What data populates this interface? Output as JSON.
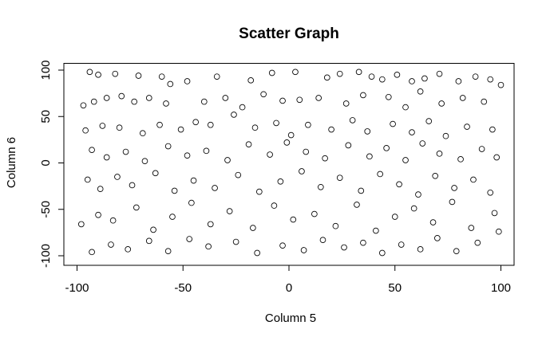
{
  "chart_data": {
    "type": "scatter",
    "title": "Scatter Graph",
    "xlabel": "Column 5",
    "ylabel": "Column 6",
    "xlim": [
      -100,
      100
    ],
    "ylim": [
      -100,
      100
    ],
    "xticks": [
      -100,
      -50,
      0,
      50,
      100
    ],
    "yticks": [
      -100,
      -50,
      0,
      50,
      100
    ],
    "xtick_labels": [
      "-100",
      "-50",
      "0",
      "50",
      "100"
    ],
    "ytick_labels": [
      "-100",
      "-50",
      "0",
      "50",
      "100"
    ],
    "marker": "open-circle",
    "point_color": "#000000",
    "background": "#ffffff",
    "grid": false,
    "points": [
      {
        "x": -94,
        "y": 98
      },
      {
        "x": -90,
        "y": 95
      },
      {
        "x": -82,
        "y": 96
      },
      {
        "x": -71,
        "y": 94
      },
      {
        "x": -60,
        "y": 93
      },
      {
        "x": -56,
        "y": 85
      },
      {
        "x": -48,
        "y": 88
      },
      {
        "x": -34,
        "y": 93
      },
      {
        "x": -18,
        "y": 89
      },
      {
        "x": -8,
        "y": 97
      },
      {
        "x": 3,
        "y": 98
      },
      {
        "x": 18,
        "y": 92
      },
      {
        "x": 24,
        "y": 96
      },
      {
        "x": 33,
        "y": 98
      },
      {
        "x": 39,
        "y": 93
      },
      {
        "x": 44,
        "y": 90
      },
      {
        "x": 51,
        "y": 95
      },
      {
        "x": 58,
        "y": 88
      },
      {
        "x": 64,
        "y": 91
      },
      {
        "x": 71,
        "y": 96
      },
      {
        "x": 80,
        "y": 88
      },
      {
        "x": 88,
        "y": 93
      },
      {
        "x": 95,
        "y": 90
      },
      {
        "x": 100,
        "y": 84
      },
      {
        "x": -97,
        "y": 62
      },
      {
        "x": -92,
        "y": 66
      },
      {
        "x": -86,
        "y": 70
      },
      {
        "x": -79,
        "y": 72
      },
      {
        "x": -73,
        "y": 66
      },
      {
        "x": -66,
        "y": 70
      },
      {
        "x": -58,
        "y": 64
      },
      {
        "x": -40,
        "y": 66
      },
      {
        "x": -30,
        "y": 70
      },
      {
        "x": -22,
        "y": 60
      },
      {
        "x": -12,
        "y": 74
      },
      {
        "x": -3,
        "y": 67
      },
      {
        "x": 5,
        "y": 68
      },
      {
        "x": 14,
        "y": 70
      },
      {
        "x": 27,
        "y": 64
      },
      {
        "x": 35,
        "y": 73
      },
      {
        "x": 47,
        "y": 71
      },
      {
        "x": 55,
        "y": 60
      },
      {
        "x": 62,
        "y": 77
      },
      {
        "x": 72,
        "y": 64
      },
      {
        "x": 82,
        "y": 70
      },
      {
        "x": 92,
        "y": 66
      },
      {
        "x": -96,
        "y": 35
      },
      {
        "x": -88,
        "y": 40
      },
      {
        "x": -80,
        "y": 38
      },
      {
        "x": -69,
        "y": 32
      },
      {
        "x": -61,
        "y": 41
      },
      {
        "x": -51,
        "y": 36
      },
      {
        "x": -44,
        "y": 44
      },
      {
        "x": -37,
        "y": 41
      },
      {
        "x": -26,
        "y": 52
      },
      {
        "x": -16,
        "y": 38
      },
      {
        "x": -6,
        "y": 43
      },
      {
        "x": 1,
        "y": 30
      },
      {
        "x": 9,
        "y": 41
      },
      {
        "x": 20,
        "y": 36
      },
      {
        "x": 30,
        "y": 46
      },
      {
        "x": 37,
        "y": 34
      },
      {
        "x": 49,
        "y": 42
      },
      {
        "x": 58,
        "y": 33
      },
      {
        "x": 66,
        "y": 45
      },
      {
        "x": 74,
        "y": 29
      },
      {
        "x": 84,
        "y": 39
      },
      {
        "x": 96,
        "y": 36
      },
      {
        "x": -93,
        "y": 14
      },
      {
        "x": -86,
        "y": 6
      },
      {
        "x": -77,
        "y": 12
      },
      {
        "x": -68,
        "y": 2
      },
      {
        "x": -57,
        "y": 18
      },
      {
        "x": -48,
        "y": 8
      },
      {
        "x": -39,
        "y": 13
      },
      {
        "x": -29,
        "y": 3
      },
      {
        "x": -19,
        "y": 20
      },
      {
        "x": -9,
        "y": 9
      },
      {
        "x": -1,
        "y": 22
      },
      {
        "x": 8,
        "y": 12
      },
      {
        "x": 17,
        "y": 5
      },
      {
        "x": 28,
        "y": 19
      },
      {
        "x": 38,
        "y": 7
      },
      {
        "x": 46,
        "y": 16
      },
      {
        "x": 55,
        "y": 3
      },
      {
        "x": 63,
        "y": 21
      },
      {
        "x": 71,
        "y": 10
      },
      {
        "x": 81,
        "y": 4
      },
      {
        "x": 91,
        "y": 15
      },
      {
        "x": 98,
        "y": 6
      },
      {
        "x": -95,
        "y": -18
      },
      {
        "x": -89,
        "y": -28
      },
      {
        "x": -81,
        "y": -15
      },
      {
        "x": -74,
        "y": -24
      },
      {
        "x": -63,
        "y": -11
      },
      {
        "x": -54,
        "y": -30
      },
      {
        "x": -45,
        "y": -19
      },
      {
        "x": -35,
        "y": -27
      },
      {
        "x": -24,
        "y": -13
      },
      {
        "x": -14,
        "y": -31
      },
      {
        "x": -4,
        "y": -20
      },
      {
        "x": 6,
        "y": -9
      },
      {
        "x": 15,
        "y": -26
      },
      {
        "x": 24,
        "y": -16
      },
      {
        "x": 34,
        "y": -30
      },
      {
        "x": 43,
        "y": -12
      },
      {
        "x": 52,
        "y": -23
      },
      {
        "x": 61,
        "y": -34
      },
      {
        "x": 69,
        "y": -14
      },
      {
        "x": 78,
        "y": -27
      },
      {
        "x": 87,
        "y": -18
      },
      {
        "x": 95,
        "y": -32
      },
      {
        "x": -98,
        "y": -66
      },
      {
        "x": -90,
        "y": -56
      },
      {
        "x": -83,
        "y": -62
      },
      {
        "x": -72,
        "y": -48
      },
      {
        "x": -64,
        "y": -72
      },
      {
        "x": -55,
        "y": -58
      },
      {
        "x": -46,
        "y": -43
      },
      {
        "x": -37,
        "y": -66
      },
      {
        "x": -28,
        "y": -52
      },
      {
        "x": -17,
        "y": -70
      },
      {
        "x": -7,
        "y": -46
      },
      {
        "x": 2,
        "y": -61
      },
      {
        "x": 12,
        "y": -55
      },
      {
        "x": 22,
        "y": -68
      },
      {
        "x": 32,
        "y": -45
      },
      {
        "x": 41,
        "y": -73
      },
      {
        "x": 50,
        "y": -58
      },
      {
        "x": 59,
        "y": -49
      },
      {
        "x": 68,
        "y": -64
      },
      {
        "x": 77,
        "y": -42
      },
      {
        "x": 86,
        "y": -70
      },
      {
        "x": 97,
        "y": -54
      },
      {
        "x": -93,
        "y": -96
      },
      {
        "x": -84,
        "y": -88
      },
      {
        "x": -76,
        "y": -93
      },
      {
        "x": -66,
        "y": -84
      },
      {
        "x": -57,
        "y": -95
      },
      {
        "x": -47,
        "y": -82
      },
      {
        "x": -38,
        "y": -90
      },
      {
        "x": -25,
        "y": -85
      },
      {
        "x": -15,
        "y": -97
      },
      {
        "x": -3,
        "y": -89
      },
      {
        "x": 7,
        "y": -94
      },
      {
        "x": 16,
        "y": -83
      },
      {
        "x": 26,
        "y": -91
      },
      {
        "x": 35,
        "y": -86
      },
      {
        "x": 44,
        "y": -97
      },
      {
        "x": 53,
        "y": -88
      },
      {
        "x": 62,
        "y": -93
      },
      {
        "x": 70,
        "y": -81
      },
      {
        "x": 79,
        "y": -95
      },
      {
        "x": 89,
        "y": -86
      },
      {
        "x": 99,
        "y": -74
      }
    ]
  }
}
